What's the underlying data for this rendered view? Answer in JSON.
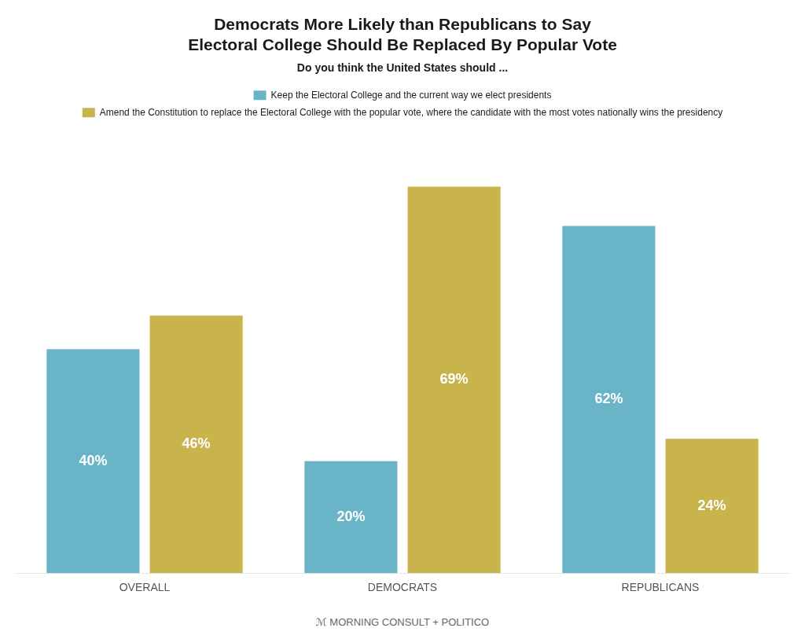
{
  "chart_data": {
    "type": "bar",
    "title": [
      "Democrats More Likely than Republicans to Say",
      "Electoral College Should Be Replaced By Popular Vote"
    ],
    "subtitle": "Do you think the United States should ...",
    "annotations": [
      "ℳ MORNING CONSULT  +  POLITICO"
    ],
    "categories": [
      "OVERALL",
      "DEMOCRATS",
      "REPUBLICANS"
    ],
    "series": [
      {
        "name": "Keep the Electoral College and the current way we elect presidents",
        "color": "#6ab4c8",
        "values": [
          40,
          20,
          62
        ],
        "value_labels": [
          "40%",
          "20%",
          "62%"
        ]
      },
      {
        "name": "Amend the Constitution to replace the Electoral College with the popular vote, where the candidate with the most votes nationally wins the presidency",
        "color": "#c8b44b",
        "values": [
          46,
          69,
          24
        ],
        "value_labels": [
          "46%",
          "69%",
          "24%"
        ]
      }
    ],
    "ylim": [
      0,
      80
    ],
    "grid": false,
    "legend": "top",
    "data_labels": true,
    "tick_labels": "x"
  }
}
